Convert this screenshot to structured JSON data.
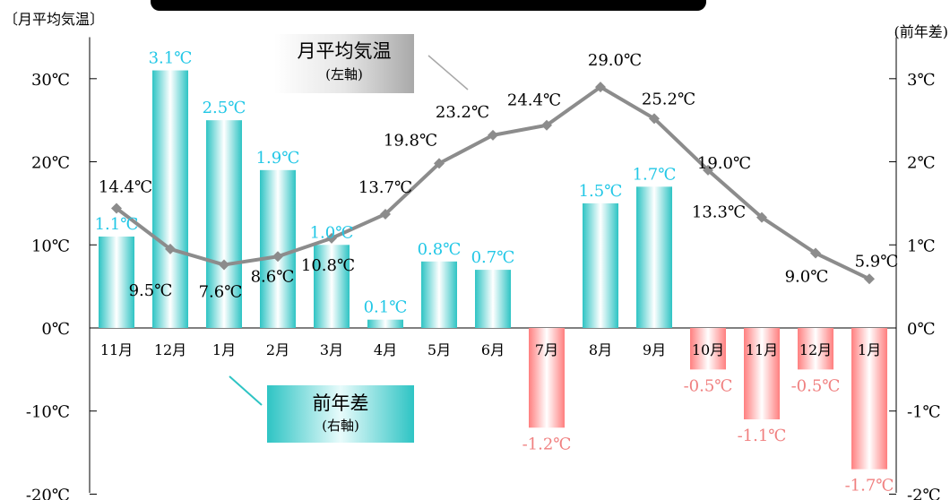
{
  "chart_data": {
    "type": "bar+line",
    "left_axis_label": "〔月平均気温〕",
    "right_axis_label": "(前年差)",
    "categories": [
      "11月",
      "12月",
      "1月",
      "2月",
      "3月",
      "4月",
      "5月",
      "6月",
      "7月",
      "8月",
      "9月",
      "10月",
      "11月",
      "12月",
      "1月"
    ],
    "left_axis": {
      "ylim": [
        -20,
        35
      ],
      "ticks": [
        30,
        20,
        10,
        0,
        -10,
        -20
      ],
      "tick_labels": [
        "30℃",
        "20℃",
        "10℃",
        "0℃",
        "-10℃",
        "-20℃"
      ]
    },
    "right_axis": {
      "ylim": [
        -2,
        3.5
      ],
      "ticks": [
        3,
        2,
        1,
        0,
        -1,
        -2
      ],
      "tick_labels": [
        "3℃",
        "2℃",
        "1℃",
        "0℃",
        "-1℃",
        "-2℃"
      ]
    },
    "series": [
      {
        "name": "前年差",
        "axis": "right",
        "type": "bar",
        "values": [
          1.1,
          3.1,
          2.5,
          1.9,
          1.0,
          0.1,
          0.8,
          0.7,
          -1.2,
          1.5,
          1.7,
          -0.5,
          -1.1,
          -0.5,
          -1.7
        ],
        "labels": [
          "1.1℃",
          "3.1℃",
          "2.5℃",
          "1.9℃",
          "1.0℃",
          "0.1℃",
          "0.8℃",
          "0.7℃",
          "-1.2℃",
          "1.5℃",
          "1.7℃",
          "-0.5℃",
          "-1.1℃",
          "-0.5℃",
          "-1.7℃"
        ],
        "positive_color": "#2ec4c4",
        "negative_color": "#ff7f7f",
        "positive_label_color": "#22c7e6",
        "negative_label_color": "#f08080"
      },
      {
        "name": "月平均気温",
        "axis": "left",
        "type": "line",
        "values": [
          14.4,
          9.5,
          7.6,
          8.6,
          10.8,
          13.7,
          19.8,
          23.2,
          24.4,
          29.0,
          25.2,
          19.0,
          13.3,
          9.0,
          5.9
        ],
        "labels": [
          "14.4℃",
          "9.5℃",
          "7.6℃",
          "8.6℃",
          "10.8℃",
          "13.7℃",
          "19.8℃",
          "23.2℃",
          "24.4℃",
          "29.0℃",
          "25.2℃",
          "19.0℃",
          "13.3℃",
          "9.0℃",
          "5.9℃"
        ],
        "color": "#8c8c8c"
      }
    ],
    "legend_line": {
      "title": "月平均気温",
      "subtitle": "(左軸)"
    },
    "legend_bar": {
      "title": "前年差",
      "subtitle": "(右軸)"
    }
  }
}
